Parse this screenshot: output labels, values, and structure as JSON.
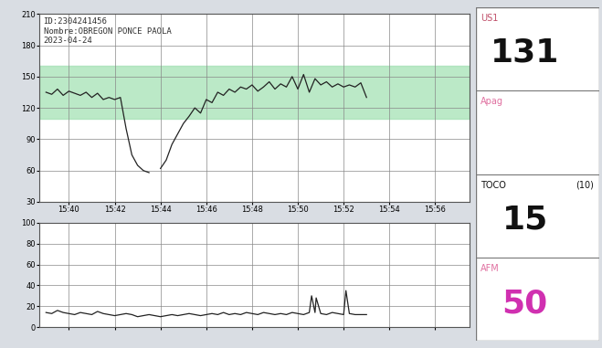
{
  "chart_data": [
    {
      "type": "line",
      "title_lines": [
        "ID:2304241456",
        "Nombre:OBREGON PONCE PAOLA",
        "2023-04-24"
      ],
      "x": [
        39.0,
        39.25,
        39.5,
        39.75,
        40.0,
        40.25,
        40.5,
        40.75,
        41.0,
        41.25,
        41.5,
        41.75,
        42.0,
        42.25,
        42.5,
        42.75,
        43.0,
        43.25,
        43.5,
        43.75,
        44.0,
        44.25,
        44.5,
        44.75,
        45.0,
        45.25,
        45.5,
        45.75,
        46.0,
        46.25,
        46.5,
        46.75,
        47.0,
        47.25,
        47.5,
        47.75,
        48.0,
        48.25,
        48.5,
        48.75,
        49.0,
        49.25,
        49.5,
        49.75,
        50.0,
        50.25,
        50.5,
        50.75,
        51.0,
        51.25,
        51.5,
        51.75,
        52.0,
        52.25,
        52.5,
        52.75,
        53.0
      ],
      "values": [
        135,
        133,
        138,
        132,
        136,
        134,
        132,
        135,
        130,
        134,
        128,
        130,
        128,
        130,
        100,
        75,
        65,
        60,
        58,
        null,
        62,
        70,
        85,
        95,
        105,
        112,
        120,
        115,
        128,
        125,
        135,
        132,
        138,
        135,
        140,
        138,
        142,
        136,
        140,
        145,
        138,
        143,
        140,
        150,
        138,
        152,
        135,
        148,
        142,
        145,
        140,
        143,
        140,
        142,
        140,
        144,
        130
      ],
      "color": "#222222",
      "normal_range": [
        110,
        160
      ],
      "xlim": [
        38.7,
        57.5
      ],
      "xticks": [
        {
          "value": 40,
          "label": "15:40"
        },
        {
          "value": 42,
          "label": "15:42"
        },
        {
          "value": 44,
          "label": "15:44"
        },
        {
          "value": 46,
          "label": "15:46"
        },
        {
          "value": 48,
          "label": "15:48"
        },
        {
          "value": 50,
          "label": "15:50"
        },
        {
          "value": 52,
          "label": "15:52"
        },
        {
          "value": 54,
          "label": "15:54"
        },
        {
          "value": 56,
          "label": "15:56"
        }
      ],
      "ylim": [
        30,
        210
      ],
      "yticks": [
        30,
        60,
        90,
        120,
        150,
        180,
        210
      ],
      "grid": true
    },
    {
      "type": "line",
      "x": [
        39.0,
        39.25,
        39.5,
        39.75,
        40.0,
        40.25,
        40.5,
        40.75,
        41.0,
        41.25,
        41.5,
        41.75,
        42.0,
        42.25,
        42.5,
        42.75,
        43.0,
        43.25,
        43.5,
        43.75,
        44.0,
        44.25,
        44.5,
        44.75,
        45.0,
        45.25,
        45.5,
        45.75,
        46.0,
        46.25,
        46.5,
        46.75,
        47.0,
        47.25,
        47.5,
        47.75,
        48.0,
        48.25,
        48.5,
        48.75,
        49.0,
        49.25,
        49.5,
        49.75,
        50.0,
        50.25,
        50.5,
        50.6,
        50.75,
        50.8,
        51.0,
        51.25,
        51.5,
        51.75,
        52.0,
        52.1,
        52.25,
        52.5,
        52.75,
        53.0
      ],
      "values": [
        14,
        13,
        16,
        14,
        13,
        12,
        14,
        13,
        12,
        15,
        13,
        12,
        11,
        12,
        13,
        12,
        10,
        11,
        12,
        11,
        10,
        11,
        12,
        11,
        12,
        13,
        12,
        11,
        12,
        13,
        12,
        14,
        12,
        13,
        12,
        14,
        13,
        12,
        14,
        13,
        12,
        13,
        12,
        14,
        13,
        12,
        14,
        30,
        14,
        28,
        13,
        12,
        14,
        13,
        12,
        35,
        13,
        12,
        12,
        12
      ],
      "color": "#222222",
      "xlim": [
        38.7,
        57.5
      ],
      "xticks": [
        40,
        42,
        44,
        46,
        48,
        50,
        52,
        54,
        56
      ],
      "ylim": [
        0,
        100
      ],
      "yticks": [
        0,
        20,
        40,
        60,
        80,
        100
      ],
      "grid": true,
      "tick_labels": "y"
    }
  ],
  "panel": [
    {
      "label": "US1",
      "value": 131,
      "label_color": "#c0506a",
      "value_color": "#111111"
    },
    {
      "label": "Apag",
      "label_color": "#e070a0"
    },
    {
      "label": "TOCO",
      "note": "(10)",
      "value": 15,
      "label_color": "#111111",
      "value_color": "#111111"
    },
    {
      "label": "AFM",
      "value": 50,
      "label_color": "#e070a0",
      "value_color": "#d030b0"
    }
  ]
}
